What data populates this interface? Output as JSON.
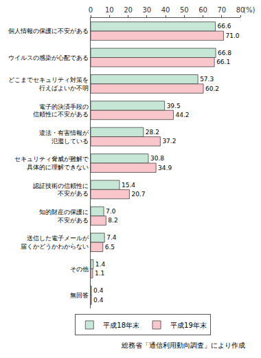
{
  "chart_data": {
    "type": "bar",
    "orientation": "horizontal",
    "categories": [
      "個人情報の保護に不安がある",
      "ウイルスの感染が心配である",
      "どこまでセキュリティ対策を\n行えばよいか不明",
      "電子的決済手段の\n信頼性に不安がある",
      "違法・有害情報が\n氾濫している",
      "セキュリティ脅威が難解で\n具体的に理解できない",
      "認証技術の信頼性に\n不安がある",
      "知的財産の保護に\n不安がある",
      "送信した電子メールが\n届くかどうかわからない",
      "その他",
      "無回答"
    ],
    "series": [
      {
        "name": "平成18年末",
        "color": "#c6e6d6",
        "values": [
          66.6,
          66.8,
          57.3,
          39.5,
          28.2,
          30.8,
          15.4,
          7.0,
          7.4,
          1.4,
          0.4
        ],
        "value_labels": [
          "66.6",
          "66.8",
          "57.3",
          "39.5",
          "28.2",
          "30.8",
          "15.4",
          "7.0",
          "7.4",
          "1.4",
          "0.4"
        ]
      },
      {
        "name": "平成19年末",
        "color": "#f8c6cb",
        "values": [
          71.0,
          66.1,
          60.2,
          44.2,
          37.2,
          34.9,
          20.7,
          8.2,
          6.5,
          1.1,
          0.4
        ],
        "value_labels": [
          "71.0",
          "66.1",
          "60.2",
          "44.2",
          "37.2",
          "34.9",
          "20.7",
          "8.2",
          "6.5",
          "1.1",
          "0.4"
        ]
      }
    ],
    "x_label": "(%)",
    "xlim": [
      0,
      80
    ],
    "xticks": [
      0,
      10,
      20,
      30,
      40,
      50,
      60,
      70,
      80
    ],
    "grid": false,
    "data_labels": true,
    "legend": "bottom",
    "note": "総務省「通信利用動向調査」により作成"
  }
}
